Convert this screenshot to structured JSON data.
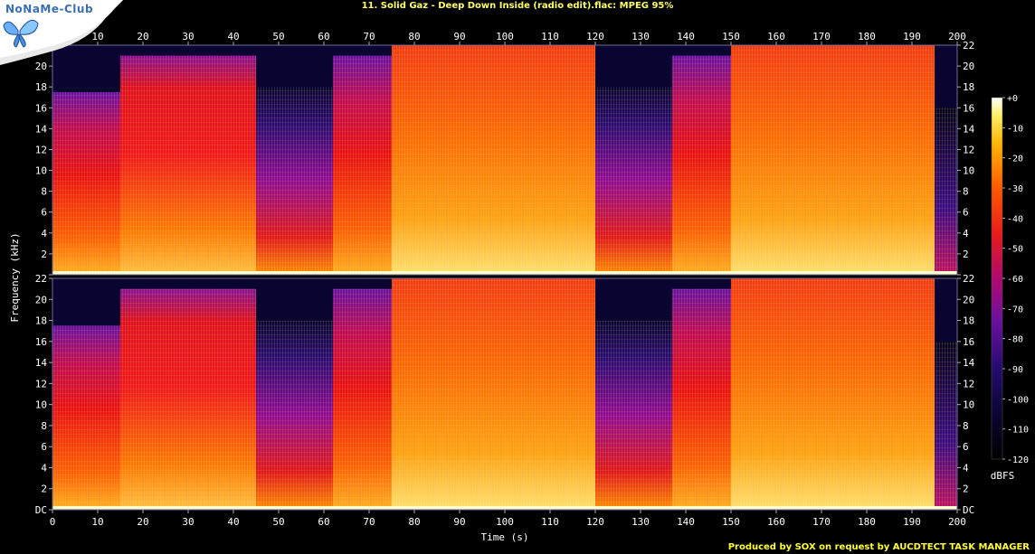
{
  "header": {
    "title": "11. Solid Gaz - Deep Down Inside (radio edit).flac: MPEG 95%"
  },
  "footer": {
    "credit": "Produced by SOX on request by AUCDTECT TASK MANAGER"
  },
  "logo": {
    "text": "NoNaMe-Club"
  },
  "chart_data": {
    "type": "heatmap",
    "title": "11. Solid Gaz - Deep Down Inside (radio edit).flac: MPEG 95%",
    "xlabel": "Time (s)",
    "ylabel": "Frequency (kHz)",
    "xlim": [
      0,
      200
    ],
    "x_ticks": [
      0,
      10,
      20,
      30,
      40,
      50,
      60,
      70,
      80,
      90,
      100,
      110,
      120,
      130,
      140,
      150,
      160,
      170,
      180,
      190,
      200
    ],
    "ylim": [
      0,
      22
    ],
    "y_ticks": [
      "DC",
      "2",
      "4",
      "6",
      "8",
      "10",
      "12",
      "14",
      "16",
      "18",
      "20",
      "22"
    ],
    "channels": 2,
    "colorbar": {
      "label": "dBFS",
      "ticks": [
        "+0",
        "-10",
        "-20",
        "-30",
        "-40",
        "-50",
        "-60",
        "-70",
        "-80",
        "-90",
        "-100",
        "-110",
        "-120"
      ],
      "range": [
        -120,
        0
      ]
    },
    "sections": [
      {
        "start": 0,
        "end": 15,
        "level": "medium",
        "cutoff_khz": 17.5
      },
      {
        "start": 15,
        "end": 45,
        "level": "high",
        "cutoff_khz": 21
      },
      {
        "start": 45,
        "end": 62,
        "level": "sparse",
        "cutoff_khz": 18
      },
      {
        "start": 62,
        "end": 75,
        "level": "medium",
        "cutoff_khz": 21
      },
      {
        "start": 75,
        "end": 120,
        "level": "very_high",
        "cutoff_khz": 22
      },
      {
        "start": 120,
        "end": 137,
        "level": "sparse",
        "cutoff_khz": 18
      },
      {
        "start": 137,
        "end": 150,
        "level": "medium",
        "cutoff_khz": 21
      },
      {
        "start": 150,
        "end": 195,
        "level": "very_high",
        "cutoff_khz": 22
      },
      {
        "start": 195,
        "end": 200,
        "level": "fade",
        "cutoff_khz": 16
      }
    ]
  }
}
